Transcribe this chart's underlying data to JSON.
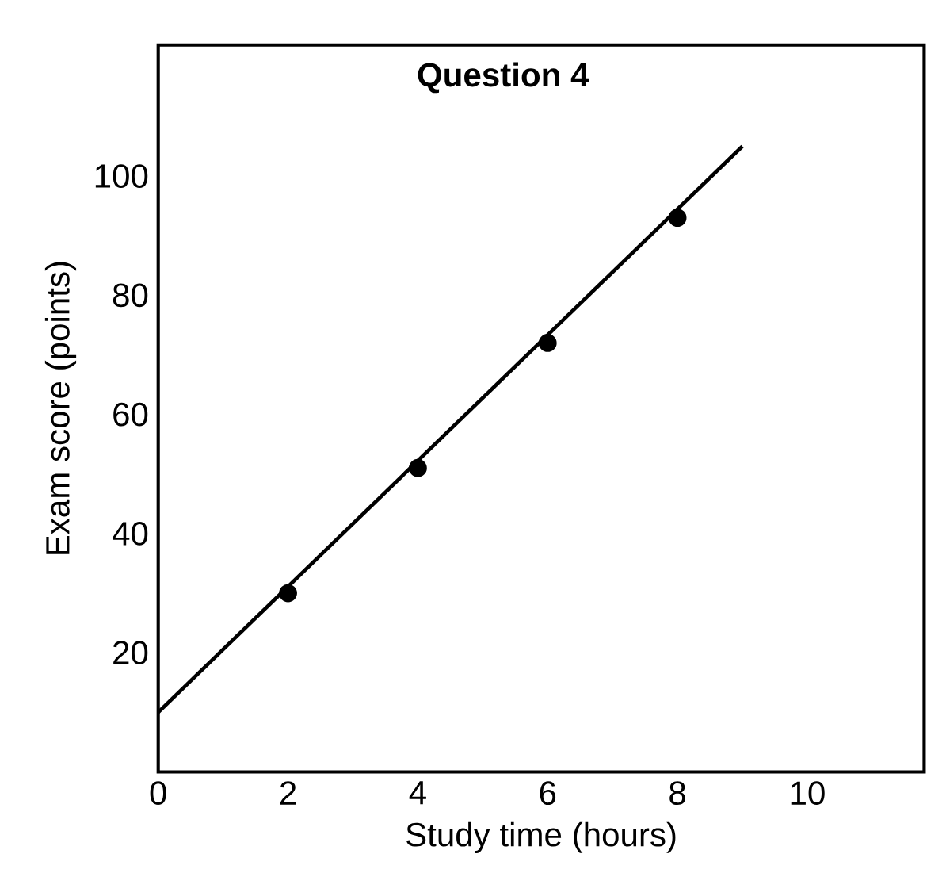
{
  "chart_data": {
    "type": "scatter",
    "title": "Question 4",
    "xlabel": "Study time (hours)",
    "ylabel": "Exam score (points)",
    "xlim": [
      0,
      11.8
    ],
    "ylim": [
      0,
      122
    ],
    "xticks": [
      0,
      2,
      4,
      6,
      8,
      10
    ],
    "yticks": [
      20,
      40,
      60,
      80,
      100
    ],
    "series": [
      {
        "type": "line",
        "color": "#000000",
        "x": [
          0,
          9
        ],
        "values": [
          10,
          105
        ],
        "marker": "none"
      },
      {
        "color": "#000000",
        "x": [
          2,
          4,
          6,
          8
        ],
        "values": [
          30,
          51,
          72,
          93
        ],
        "marker": "circle"
      }
    ]
  }
}
